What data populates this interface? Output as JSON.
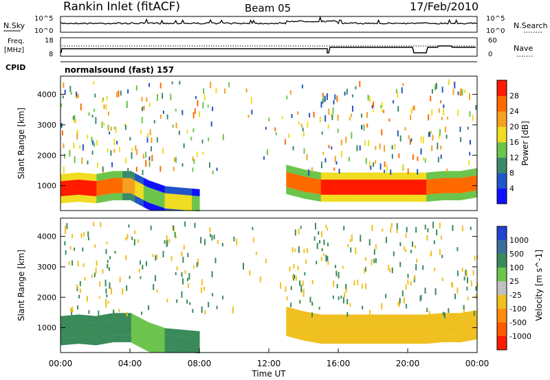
{
  "header": {
    "station": "Rankin Inlet (fitACF)",
    "beam": "Beam 05",
    "date": "17/Feb/2010"
  },
  "noise_panel": {
    "left_label": "N.Sky",
    "left_ticks": [
      "10^5",
      "10^0"
    ],
    "right_ticks": [
      "10^5",
      "10^0"
    ],
    "right_label": "N.Search"
  },
  "freq_panel": {
    "left_label_1": "Freq.",
    "left_label_2": "[MHz]",
    "left_ticks": [
      "18",
      "8"
    ],
    "right_ticks": [
      "60",
      "0"
    ],
    "right_label": "Nave"
  },
  "cpid": {
    "label": "CPID",
    "program": "normalsound (fast) 157"
  },
  "chart_data": [
    {
      "type": "heatmap",
      "title": "Power",
      "ylabel": "Slant Range [km]",
      "xlabel": "",
      "ylim": [
        180,
        4600
      ],
      "yticks": [
        "1000",
        "2000",
        "3000",
        "4000"
      ],
      "colorbar": {
        "label": "Power [dB]",
        "ticks": [
          "4",
          "8",
          "12",
          "16",
          "20",
          "24",
          "28"
        ],
        "colors": [
          "#1010ff",
          "#2255c8",
          "#3a8a6a",
          "#6cc44c",
          "#f0dc20",
          "#f5a020",
          "#ff6a00",
          "#ff1a00"
        ]
      },
      "x_hours": [
        0,
        1,
        2,
        3,
        4,
        5,
        6,
        7,
        8,
        9,
        10,
        11,
        12,
        13,
        14,
        15,
        16,
        17,
        18,
        19,
        20,
        21,
        22,
        23,
        24
      ],
      "main_echo_range_km": [
        900,
        950,
        900,
        1000,
        1000,
        700,
        500,
        450,
        400,
        null,
        null,
        null,
        null,
        1200,
        1050,
        950,
        950,
        950,
        950,
        950,
        950,
        950,
        1000,
        1000,
        1100
      ],
      "main_echo_power_db": [
        28,
        28,
        28,
        26,
        22,
        14,
        16,
        18,
        14,
        null,
        null,
        null,
        null,
        24,
        26,
        28,
        28,
        28,
        28,
        28,
        28,
        28,
        26,
        26,
        28
      ]
    },
    {
      "type": "heatmap",
      "title": "Velocity",
      "ylabel": "Slant Range [km]",
      "xlabel": "Time UT",
      "ylim": [
        180,
        4600
      ],
      "yticks": [
        "1000",
        "2000",
        "3000",
        "4000"
      ],
      "colorbar": {
        "label": "Velocity [m s^-1]",
        "ticks": [
          "1000",
          "500",
          "100",
          "25",
          "-25",
          "-100",
          "-500",
          "-1000"
        ],
        "colors": [
          "#2244cc",
          "#3a6f9a",
          "#3a8a5a",
          "#6cc44c",
          "#c0c0c0",
          "#f0c020",
          "#ff8c10",
          "#ff5a00",
          "#ff1a00"
        ]
      },
      "x_hours": [
        0,
        1,
        2,
        3,
        4,
        5,
        6,
        7,
        8,
        9,
        10,
        11,
        12,
        13,
        14,
        15,
        16,
        17,
        18,
        19,
        20,
        21,
        22,
        23,
        24
      ],
      "main_echo_range_km": [
        900,
        950,
        900,
        1000,
        1000,
        700,
        500,
        450,
        400,
        null,
        null,
        null,
        null,
        1200,
        1050,
        950,
        950,
        950,
        950,
        950,
        950,
        950,
        1000,
        1000,
        1100
      ],
      "main_echo_velocity_ms": [
        100,
        100,
        100,
        100,
        100,
        25,
        100,
        100,
        100,
        null,
        null,
        null,
        null,
        -100,
        -100,
        -100,
        -100,
        -100,
        -100,
        -100,
        -100,
        -100,
        -100,
        -100,
        -100
      ]
    }
  ],
  "time_axis": {
    "ticks": [
      "00:00",
      "04:00",
      "08:00",
      "12:00",
      "16:00",
      "20:00",
      "00:00"
    ],
    "label": "Time UT"
  }
}
